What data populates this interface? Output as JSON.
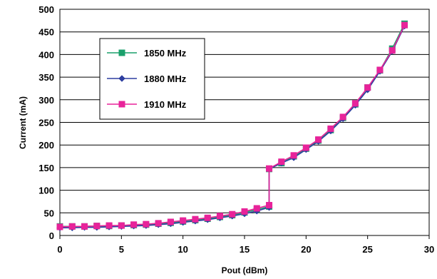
{
  "chart_data": {
    "type": "line",
    "title": "",
    "xlabel": "Pout (dBm)",
    "ylabel": "Current (mA)",
    "xlim": [
      0,
      30
    ],
    "ylim": [
      0,
      500
    ],
    "xticks": [
      0,
      5,
      10,
      15,
      20,
      25,
      30
    ],
    "yticks": [
      0,
      50,
      100,
      150,
      200,
      250,
      300,
      350,
      400,
      450,
      500
    ],
    "grid": "horizontal",
    "legend_position": "top-left",
    "series": [
      {
        "name": "1850 MHz",
        "color": "#1aa06b",
        "marker": "square",
        "points": [
          [
            0,
            20
          ],
          [
            1,
            20
          ],
          [
            2,
            20
          ],
          [
            3,
            21
          ],
          [
            4,
            21
          ],
          [
            5,
            22
          ],
          [
            6,
            23
          ],
          [
            7,
            24
          ],
          [
            8,
            26
          ],
          [
            9,
            28
          ],
          [
            10,
            31
          ],
          [
            11,
            34
          ],
          [
            12,
            37
          ],
          [
            13,
            41
          ],
          [
            14,
            45
          ],
          [
            15,
            51
          ],
          [
            16,
            57
          ],
          [
            17,
            64
          ],
          [
            17,
            147
          ],
          [
            18,
            160
          ],
          [
            19,
            175
          ],
          [
            20,
            192
          ],
          [
            21,
            210
          ],
          [
            22,
            233
          ],
          [
            23,
            260
          ],
          [
            24,
            290
          ],
          [
            25,
            327
          ],
          [
            26,
            365
          ],
          [
            27,
            413
          ],
          [
            28,
            468
          ]
        ]
      },
      {
        "name": "1880 MHz",
        "color": "#2f3fa0",
        "marker": "diamond",
        "points": [
          [
            0,
            17
          ],
          [
            1,
            17
          ],
          [
            2,
            18
          ],
          [
            3,
            18
          ],
          [
            4,
            19
          ],
          [
            5,
            20
          ],
          [
            6,
            21
          ],
          [
            7,
            22
          ],
          [
            8,
            24
          ],
          [
            9,
            26
          ],
          [
            10,
            29
          ],
          [
            11,
            32
          ],
          [
            12,
            35
          ],
          [
            13,
            39
          ],
          [
            14,
            43
          ],
          [
            15,
            48
          ],
          [
            16,
            54
          ],
          [
            17,
            62
          ],
          [
            17,
            147
          ],
          [
            18,
            160
          ],
          [
            19,
            172
          ],
          [
            20,
            190
          ],
          [
            21,
            208
          ],
          [
            22,
            231
          ],
          [
            23,
            258
          ],
          [
            24,
            288
          ],
          [
            25,
            322
          ],
          [
            26,
            363
          ],
          [
            27,
            407
          ],
          [
            28,
            463
          ]
        ]
      },
      {
        "name": "1910 MHz",
        "color": "#e8239a",
        "marker": "square",
        "points": [
          [
            0,
            19
          ],
          [
            1,
            20
          ],
          [
            2,
            20
          ],
          [
            3,
            21
          ],
          [
            4,
            22
          ],
          [
            5,
            22
          ],
          [
            6,
            24
          ],
          [
            7,
            25
          ],
          [
            8,
            27
          ],
          [
            9,
            30
          ],
          [
            10,
            33
          ],
          [
            11,
            36
          ],
          [
            12,
            39
          ],
          [
            13,
            43
          ],
          [
            14,
            47
          ],
          [
            15,
            53
          ],
          [
            16,
            60
          ],
          [
            17,
            67
          ],
          [
            17,
            148
          ],
          [
            18,
            163
          ],
          [
            19,
            177
          ],
          [
            20,
            194
          ],
          [
            21,
            212
          ],
          [
            22,
            236
          ],
          [
            23,
            262
          ],
          [
            24,
            292
          ],
          [
            25,
            327
          ],
          [
            26,
            366
          ],
          [
            27,
            409
          ],
          [
            28,
            465
          ]
        ]
      }
    ]
  }
}
